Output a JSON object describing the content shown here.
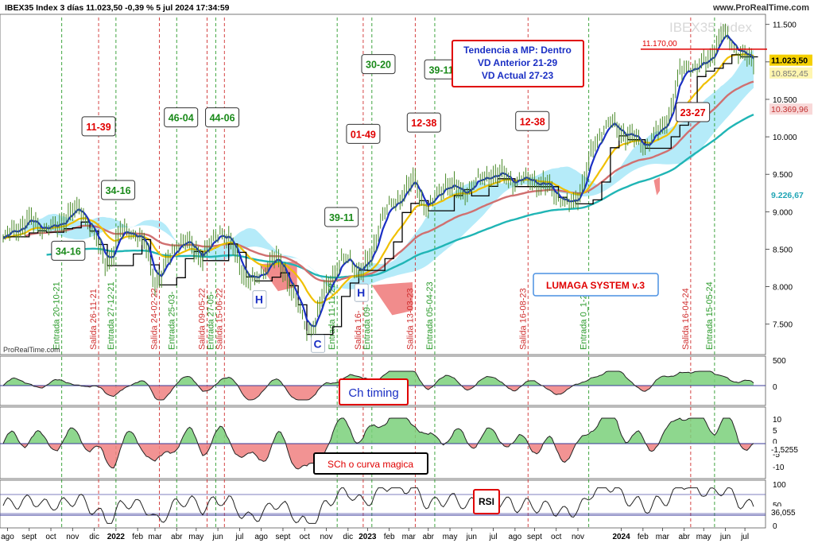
{
  "header": {
    "title": "IBEX35 Index 3 días 11.023,50 -0,39 % 5 jul 2024 17:34:59",
    "watermark": "IBEX35 Index",
    "site": "www.ProRealTime.com",
    "source": "ProRealTime.com"
  },
  "colors": {
    "price": "#4a8a2a",
    "ma_fast": "#1a2fc4",
    "ma_black": "#000000",
    "ma_yellow": "#f0c000",
    "ma_red": "#d07070",
    "ma_teal": "#20b5b5",
    "cloud": "#a8e8f8",
    "cloud_red": "#f08080",
    "entry_line": "#2a9a2a",
    "exit_line": "#d03030",
    "osc_pos": "#7ad07a",
    "osc_neg": "#f08080"
  },
  "chart_data": {
    "type": "line",
    "price_axis": {
      "ticks": [
        "11.500",
        "11.000",
        "10.500",
        "10.000",
        "9.500",
        "9.000",
        "8.500",
        "8.000",
        "7.500"
      ],
      "range": [
        7200,
        11550
      ]
    },
    "price_labels": [
      {
        "text": "11.023,50",
        "value": 11023,
        "style": "current"
      },
      {
        "text": "10.852,45",
        "value": 10852,
        "style": "yellow"
      },
      {
        "text": "10.369,96",
        "value": 10370,
        "style": "red"
      },
      {
        "text": "9.226,67",
        "value": 9227,
        "style": "teal"
      }
    ],
    "resistance": {
      "text": "11.170,00",
      "value": 11170
    },
    "x_axis": {
      "labels": [
        {
          "t": "ago",
          "i": 2
        },
        {
          "t": "sept",
          "i": 12
        },
        {
          "t": "oct",
          "i": 22
        },
        {
          "t": "nov",
          "i": 32
        },
        {
          "t": "dic",
          "i": 42
        },
        {
          "t": "2022",
          "i": 52,
          "bold": true
        },
        {
          "t": "feb",
          "i": 62
        },
        {
          "t": "mar",
          "i": 70
        },
        {
          "t": "abr",
          "i": 80
        },
        {
          "t": "may",
          "i": 89
        },
        {
          "t": "jun",
          "i": 99
        },
        {
          "t": "jul",
          "i": 109
        },
        {
          "t": "ago",
          "i": 119
        },
        {
          "t": "sept",
          "i": 129
        },
        {
          "t": "oct",
          "i": 139
        },
        {
          "t": "nov",
          "i": 149
        },
        {
          "t": "dic",
          "i": 159
        },
        {
          "t": "2023",
          "i": 168,
          "bold": true
        },
        {
          "t": "feb",
          "i": 178
        },
        {
          "t": "mar",
          "i": 187
        },
        {
          "t": "abr",
          "i": 196
        },
        {
          "t": "may",
          "i": 206
        },
        {
          "t": "jun",
          "i": 216
        },
        {
          "t": "jul",
          "i": 226
        },
        {
          "t": "ago",
          "i": 236
        },
        {
          "t": "sept",
          "i": 245
        },
        {
          "t": "oct",
          "i": 255
        },
        {
          "t": "nov",
          "i": 265
        },
        {
          "t": "2024",
          "i": 285,
          "bold": true
        },
        {
          "t": "feb",
          "i": 295
        },
        {
          "t": "mar",
          "i": 304
        },
        {
          "t": "abr",
          "i": 314
        },
        {
          "t": "may",
          "i": 323
        },
        {
          "t": "jun",
          "i": 333
        },
        {
          "t": "jul",
          "i": 342
        }
      ],
      "total": 346
    },
    "price_series": [
      [
        0,
        8620
      ],
      [
        6,
        8780
      ],
      [
        12,
        8880
      ],
      [
        18,
        8800
      ],
      [
        24,
        8770
      ],
      [
        30,
        8980
      ],
      [
        36,
        9020
      ],
      [
        40,
        8820
      ],
      [
        44,
        8520
      ],
      [
        47,
        8330
      ],
      [
        50,
        8420
      ],
      [
        54,
        8720
      ],
      [
        58,
        8780
      ],
      [
        62,
        8660
      ],
      [
        66,
        8520
      ],
      [
        70,
        8080
      ],
      [
        73,
        8120
      ],
      [
        76,
        8360
      ],
      [
        80,
        8600
      ],
      [
        84,
        8580
      ],
      [
        88,
        8520
      ],
      [
        92,
        8400
      ],
      [
        96,
        8560
      ],
      [
        100,
        8780
      ],
      [
        104,
        8620
      ],
      [
        108,
        8380
      ],
      [
        112,
        8120
      ],
      [
        116,
        8050
      ],
      [
        120,
        8220
      ],
      [
        124,
        8380
      ],
      [
        128,
        8300
      ],
      [
        132,
        8060
      ],
      [
        136,
        7720
      ],
      [
        140,
        7420
      ],
      [
        144,
        7520
      ],
      [
        148,
        7920
      ],
      [
        152,
        8180
      ],
      [
        156,
        8320
      ],
      [
        160,
        8380
      ],
      [
        163,
        8240
      ],
      [
        166,
        8200
      ],
      [
        170,
        8430
      ],
      [
        174,
        8900
      ],
      [
        178,
        9050
      ],
      [
        182,
        9180
      ],
      [
        186,
        9300
      ],
      [
        190,
        9420
      ],
      [
        193,
        9180
      ],
      [
        196,
        9000
      ],
      [
        200,
        9220
      ],
      [
        204,
        9400
      ],
      [
        208,
        9300
      ],
      [
        212,
        9260
      ],
      [
        216,
        9340
      ],
      [
        220,
        9420
      ],
      [
        224,
        9520
      ],
      [
        228,
        9460
      ],
      [
        232,
        9500
      ],
      [
        236,
        9380
      ],
      [
        240,
        9420
      ],
      [
        244,
        9460
      ],
      [
        248,
        9320
      ],
      [
        252,
        9350
      ],
      [
        256,
        9200
      ],
      [
        260,
        9060
      ],
      [
        264,
        9180
      ],
      [
        268,
        9420
      ],
      [
        272,
        9850
      ],
      [
        276,
        10100
      ],
      [
        280,
        10180
      ],
      [
        284,
        10100
      ],
      [
        288,
        10020
      ],
      [
        292,
        9950
      ],
      [
        296,
        9880
      ],
      [
        300,
        10000
      ],
      [
        304,
        10130
      ],
      [
        308,
        10380
      ],
      [
        312,
        10840
      ],
      [
        316,
        10980
      ],
      [
        320,
        10900
      ],
      [
        324,
        11000
      ],
      [
        328,
        11180
      ],
      [
        332,
        11380
      ],
      [
        336,
        11260
      ],
      [
        340,
        11100
      ],
      [
        344,
        11023
      ]
    ],
    "pattern_labels": [
      {
        "text": "H",
        "i": 118,
        "v": 7840
      },
      {
        "text": "C",
        "i": 145,
        "v": 7250
      },
      {
        "text": "H",
        "i": 165,
        "v": 7930
      }
    ],
    "signal_lines": [
      {
        "type": "entry",
        "i": 27,
        "text": "Entrada 20-10-21"
      },
      {
        "type": "exit",
        "i": 44,
        "text": "Salida 26-11-21"
      },
      {
        "type": "entry",
        "i": 52,
        "text": "Entrada 27-12-21"
      },
      {
        "type": "exit",
        "i": 72,
        "text": "Salida 24-02-22"
      },
      {
        "type": "entry",
        "i": 80,
        "text": "Entrada 25-03-"
      },
      {
        "type": "exit",
        "i": 94,
        "text": "Salida 09-05-22"
      },
      {
        "type": "entry",
        "i": 98,
        "text": "Entrada 27-05-"
      },
      {
        "type": "exit",
        "i": 102,
        "text": "Salida 15-06-22"
      },
      {
        "type": "entry",
        "i": 154,
        "text": "Entrada 11-11-22"
      },
      {
        "type": "exit",
        "i": 166,
        "text": "Salida 16-"
      },
      {
        "type": "entry",
        "i": 170,
        "text": "Entrada 09-"
      },
      {
        "type": "exit",
        "i": 190,
        "text": "Salida 13-03-23"
      },
      {
        "type": "entry",
        "i": 199,
        "text": "Entrada 05-04-23"
      },
      {
        "type": "exit",
        "i": 242,
        "text": "Salida 16-08-23"
      },
      {
        "type": "entry",
        "i": 270,
        "text": "Entrada 0_1-23"
      },
      {
        "type": "exit",
        "i": 317,
        "text": "Salida 16-04-24"
      },
      {
        "type": "entry",
        "i": 328,
        "text": "Entrada 15-05-24"
      }
    ],
    "count_boxes": [
      {
        "text": "34-16",
        "i": 30,
        "v": 8480,
        "color": "green"
      },
      {
        "text": "11-39",
        "i": 44,
        "v": 10140,
        "color": "red"
      },
      {
        "text": "34-16",
        "i": 53,
        "v": 9290,
        "color": "green"
      },
      {
        "text": "46-04",
        "i": 82,
        "v": 10260,
        "color": "green"
      },
      {
        "text": "44-06",
        "i": 101,
        "v": 10260,
        "color": "green"
      },
      {
        "text": "39-11",
        "i": 156,
        "v": 8930,
        "color": "green"
      },
      {
        "text": "01-49",
        "i": 166,
        "v": 10040,
        "color": "red"
      },
      {
        "text": "30-20",
        "i": 173,
        "v": 10970,
        "color": "green"
      },
      {
        "text": "12-38",
        "i": 194,
        "v": 10190,
        "color": "red"
      },
      {
        "text": "39-11",
        "i": 202,
        "v": 10900,
        "color": "green"
      },
      {
        "text": "12-38",
        "i": 244,
        "v": 10210,
        "color": "red"
      },
      {
        "text": "23-27",
        "i": 318,
        "v": 10330,
        "color": "red"
      }
    ],
    "info_box": {
      "lines": [
        "Tendencia a MP: Dentro",
        "VD Anterior 21-29",
        "VD Actual 27-23"
      ]
    },
    "system_label": "LUMAGA SYSTEM v.3",
    "indicators": [
      {
        "name": "Ch timing",
        "ticks": [
          "500",
          "0"
        ]
      },
      {
        "name": "SCh o curva magica",
        "ticks": [
          "10",
          "5",
          "0",
          "-5",
          "-10"
        ],
        "value": "-1,5255"
      },
      {
        "name": "RSI",
        "ticks": [
          "100",
          "50",
          "0"
        ],
        "value": "36,055"
      }
    ]
  }
}
